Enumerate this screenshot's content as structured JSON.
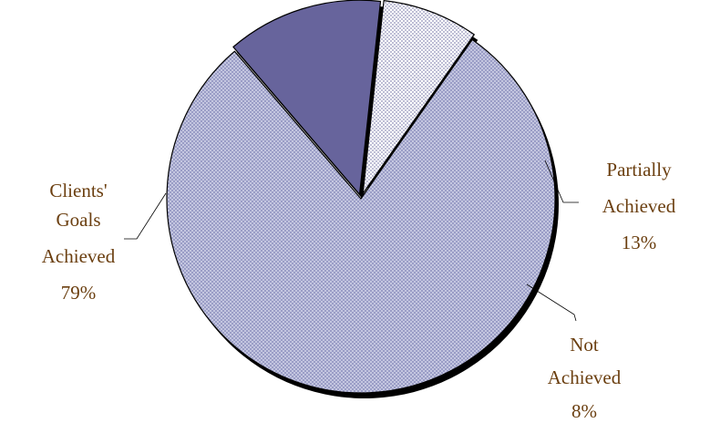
{
  "chart_data": {
    "type": "pie",
    "title": "",
    "slices": [
      {
        "label": [
          "Clients'",
          "Goals",
          "Achieved"
        ],
        "percent_label": "79%",
        "value": 79,
        "pattern": "checker",
        "color": "#b4b7d6"
      },
      {
        "label": [
          "Partially",
          "Achieved"
        ],
        "percent_label": "13%",
        "value": 13,
        "pattern": "solid",
        "color": "#67649c"
      },
      {
        "label": [
          "Not",
          "Achieved"
        ],
        "percent_label": "8%",
        "value": 8,
        "pattern": "dots",
        "color": "#cfd0e6"
      }
    ],
    "label_color": "#6b3f10",
    "outline_color": "#000000",
    "shadow_color": "#000000",
    "legend": "none",
    "exploded_slices": [
      "Partially Achieved",
      "Not Achieved"
    ]
  }
}
